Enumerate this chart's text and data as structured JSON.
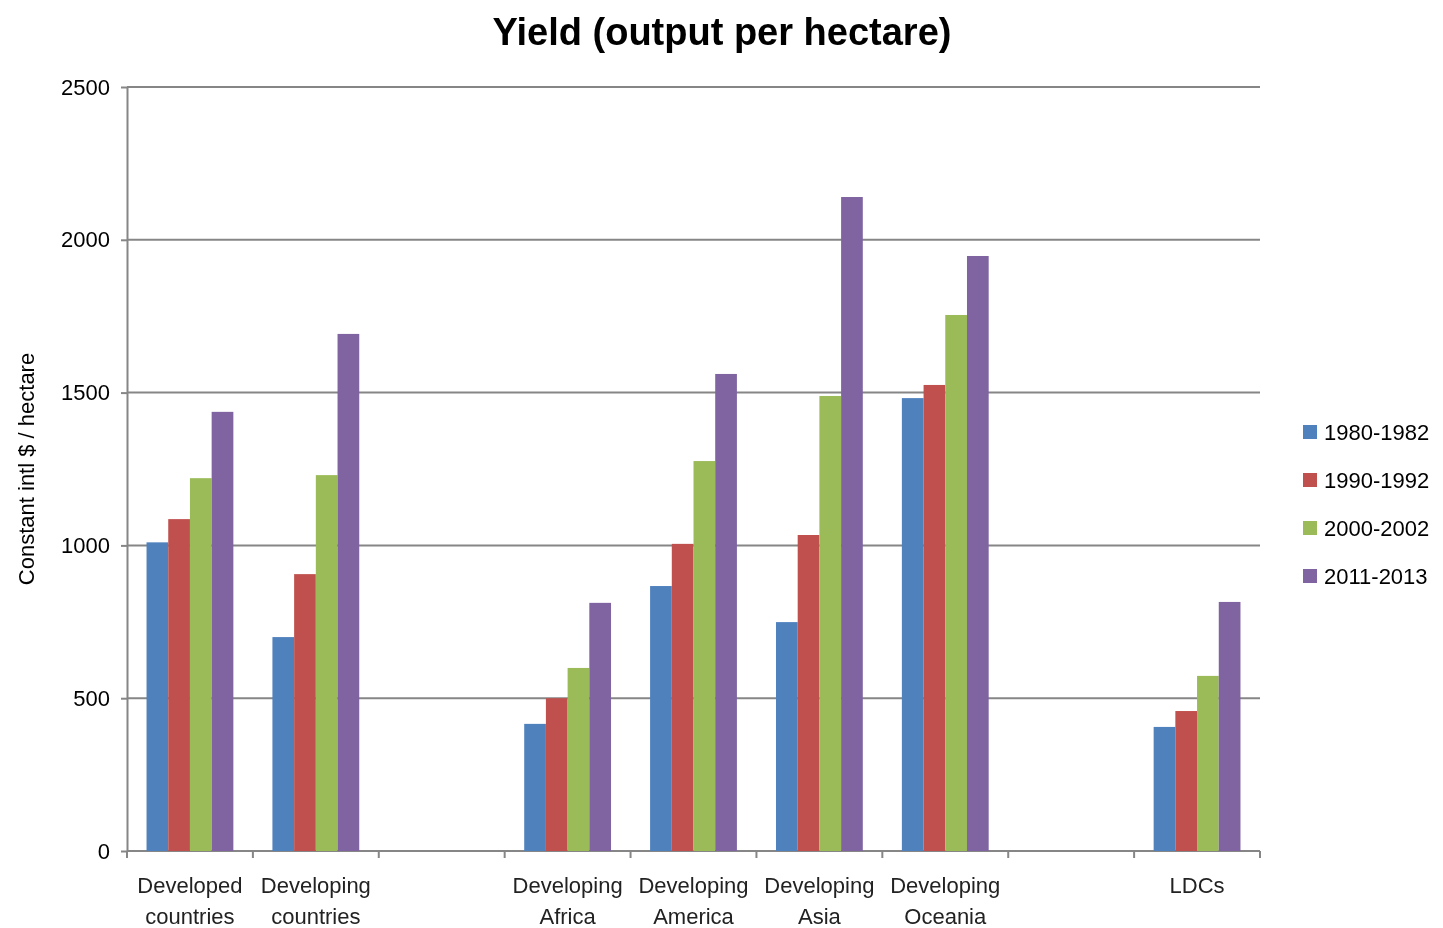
{
  "chart_data": {
    "type": "bar",
    "title": "Yield (output per hectare)",
    "ylabel": "Constant intl $ / hectare",
    "categories": [
      "Developed countries",
      "Developing countries",
      null,
      "Developing Africa",
      "Developing America",
      "Developing Asia",
      "Developing Oceania",
      null,
      "LDCs"
    ],
    "series": [
      {
        "name": "1980-1982",
        "color": "#4f81bd",
        "values": [
          1010,
          700,
          null,
          416,
          867,
          749,
          1482,
          null,
          406
        ]
      },
      {
        "name": "1990-1992",
        "color": "#c0504d",
        "values": [
          1086,
          906,
          null,
          500,
          1005,
          1034,
          1525,
          null,
          458
        ]
      },
      {
        "name": "2000-2002",
        "color": "#9bbb59",
        "values": [
          1220,
          1230,
          null,
          599,
          1276,
          1489,
          1754,
          null,
          573
        ]
      },
      {
        "name": "2011-2013",
        "color": "#8064a2",
        "values": [
          1437,
          1692,
          null,
          812,
          1561,
          2140,
          1947,
          null,
          815
        ]
      }
    ],
    "ylim": [
      0,
      2500
    ],
    "yticks": [
      0,
      500,
      1000,
      1500,
      2000,
      2500
    ],
    "grid": "y",
    "legend": "right"
  }
}
